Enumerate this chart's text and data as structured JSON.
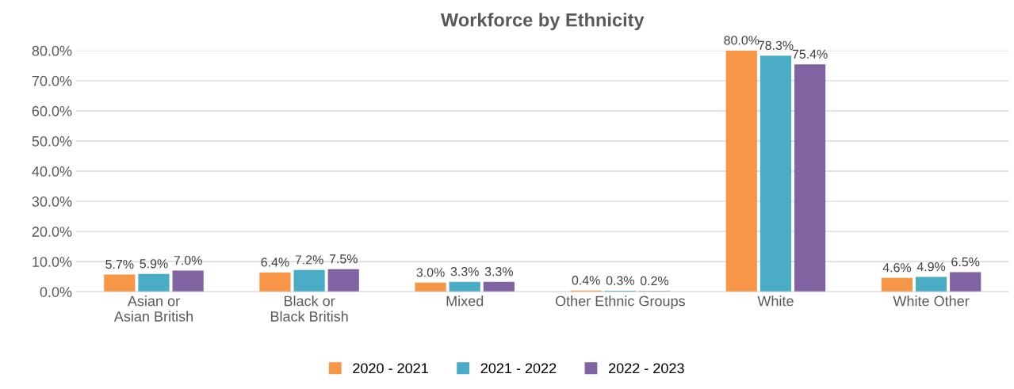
{
  "chart_data": {
    "type": "bar",
    "title": "Workforce by Ethnicity",
    "categories": [
      "Asian or Asian British",
      "Black or Black British",
      "Mixed",
      "Other Ethnic Groups",
      "White",
      "White Other"
    ],
    "series": [
      {
        "name": "2020 - 2021",
        "color": "#f79646",
        "values": [
          5.7,
          6.4,
          3.0,
          0.4,
          80.0,
          4.6
        ],
        "value_labels": [
          "5.7%",
          "6.4%",
          "3.0%",
          "0.4%",
          "80.0%",
          "4.6%"
        ]
      },
      {
        "name": "2021 - 2022",
        "color": "#4bacc6",
        "values": [
          5.9,
          7.2,
          3.3,
          0.3,
          78.3,
          4.9
        ],
        "value_labels": [
          "5.9%",
          "7.2%",
          "3.3%",
          "0.3%",
          "78.3%",
          "4.9%"
        ]
      },
      {
        "name": "2022 - 2023",
        "color": "#8064a2",
        "values": [
          7.0,
          7.5,
          3.3,
          0.2,
          75.4,
          6.5
        ],
        "value_labels": [
          "7.0%",
          "7.5%",
          "3.3%",
          "0.2%",
          "75.4%",
          "6.5%"
        ]
      }
    ],
    "ylim": [
      0,
      80
    ],
    "yticks": [
      {
        "value": 0,
        "label": "0.0%"
      },
      {
        "value": 10,
        "label": "10.0%"
      },
      {
        "value": 20,
        "label": "20.0%"
      },
      {
        "value": 30,
        "label": "30.0%"
      },
      {
        "value": 40,
        "label": "40.0%"
      },
      {
        "value": 50,
        "label": "50.0%"
      },
      {
        "value": 60,
        "label": "60.0%"
      },
      {
        "value": 70,
        "label": "70.0%"
      },
      {
        "value": 80,
        "label": "80.0%"
      }
    ],
    "grid": "y",
    "legend": "bottom"
  }
}
